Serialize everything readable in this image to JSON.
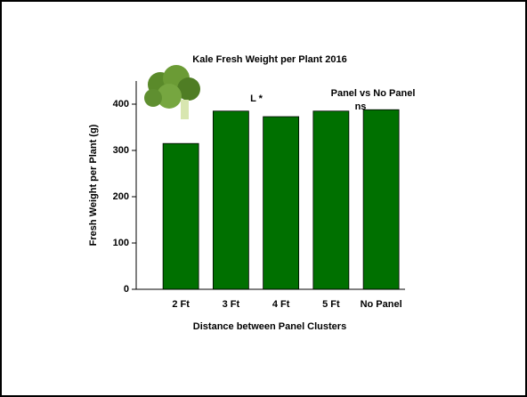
{
  "chart_data": {
    "type": "bar",
    "title": "Kale Fresh Weight per Plant 2016",
    "x_label": "Distance between Panel Clusters",
    "y_label": "Fresh Weight per Plant (g)",
    "categories": [
      "2 Ft",
      "3 Ft",
      "4 Ft",
      "5 Ft",
      "No Panel"
    ],
    "values": [
      315,
      385,
      373,
      385,
      388
    ],
    "color": "#007000",
    "ylim": [
      0,
      450
    ],
    "yticks": [
      0,
      100,
      200,
      300,
      400
    ],
    "annotations": [
      "L *",
      "Panel vs No Panel",
      "ns"
    ]
  }
}
